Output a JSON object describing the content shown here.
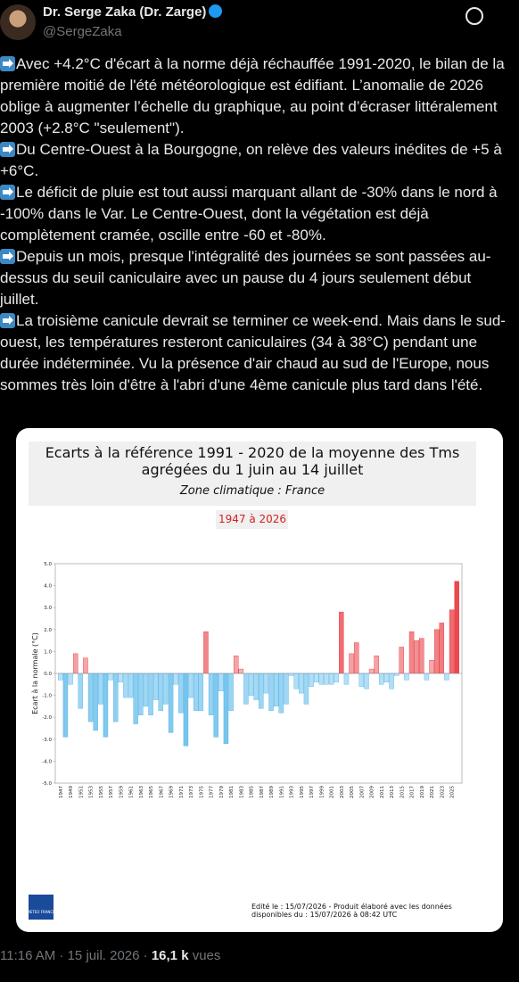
{
  "tweet": {
    "author": {
      "name": "Dr. Serge Zaka (Dr. Zarge)",
      "handle": "@SergeZaka"
    },
    "paragraphs": [
      "Avec +4.2°C d'écart à la norme déjà réchauffée 1991-2020, le bilan de la première moitié de l'été météorologique est édifiant. L’anomalie de 2026 oblige à augmenter l’échelle du graphique, au point d’écraser littéralement 2003 (+2.8°C \"seulement\").",
      "Du Centre-Ouest à la Bourgogne, on relève des valeurs inédites de +5 à +6°C.",
      "Le déficit de pluie est tout aussi marquant allant de -30% dans le nord à -100% dans le Var. Le Centre-Ouest, dont la végétation est déjà complètement cramée, oscille entre -60 et -80%.",
      "Depuis un mois, presque l'intégralité des journées se sont passées au-dessus du seuil caniculaire avec un pause du 4 jours seulement début juillet.",
      "La troisième canicule devrait se terminer ce week-end. Mais dans le sud-ouest, les températures resteront caniculaires (34 à 38°C) pendant une durée indéterminée. Vu la présence d'air chaud au sud de l'Europe, nous sommes très loin d'être à l'abri d'une 4ème canicule plus tard dans l'été."
    ],
    "meta": {
      "time": "11:16 AM · 15 juil. 2026 ·",
      "views": "16,1 k",
      "views_label": "vues"
    },
    "image": {
      "logo": "METEO FRANCE",
      "footer": [
        "Edité le : 15/07/2026 - Produit élaboré avec les données",
        "disponibles du : 15/07/2026 à 08:42 UTC"
      ]
    }
  },
  "chart_data": {
    "type": "bar",
    "title": [
      "Ecarts à la référence 1991 - 2020 de la moyenne des Tms",
      "agrégées du 1 juin au 14 juillet"
    ],
    "subtitle": "Zone climatique : France",
    "period": "1947 à 2026",
    "y_label": "Ecart à la normale (°C)",
    "categories": [
      "1947",
      null,
      "1949",
      null,
      "1951",
      null,
      "1953",
      null,
      "1955",
      null,
      "1957",
      null,
      "1959",
      null,
      "1961",
      null,
      "1963",
      null,
      "1965",
      null,
      "1967",
      null,
      "1969",
      null,
      "1971",
      null,
      "1973",
      null,
      "1975",
      null,
      "1977",
      null,
      "1979",
      null,
      "1981",
      null,
      "1983",
      null,
      "1985",
      null,
      "1987",
      null,
      "1989",
      null,
      "1991",
      null,
      "1993",
      null,
      "1995",
      null,
      "1997",
      null,
      "1999",
      null,
      "2001",
      null,
      "2003",
      null,
      "2005",
      null,
      "2007",
      null,
      "2009",
      null,
      "2011",
      null,
      "2013",
      null,
      "2015",
      null,
      "2017",
      null,
      "2019",
      null,
      "2021",
      null,
      "2023",
      null,
      "2025",
      null
    ],
    "values": [
      -0.3,
      -2.9,
      -0.5,
      0.9,
      -1.6,
      0.7,
      -2.2,
      -2.6,
      -1.4,
      -2.9,
      -0.3,
      -2.2,
      -0.4,
      -1.1,
      -1.1,
      -2.3,
      -1.9,
      -1.5,
      -1.9,
      -1.2,
      -1.7,
      -1.4,
      -2.7,
      -0.5,
      -1.8,
      -3.3,
      -1.1,
      -1.7,
      -1.7,
      1.9,
      -1.9,
      -2.9,
      -0.8,
      -3.2,
      -1.7,
      0.8,
      0.2,
      -1.4,
      -1.0,
      -1.2,
      -1.6,
      -0.9,
      -1.7,
      -1.5,
      -1.8,
      -1.4,
      -0.1,
      -0.7,
      -0.9,
      -1.4,
      -0.6,
      -0.4,
      -0.5,
      -0.5,
      -0.5,
      -0.4,
      2.8,
      -0.5,
      0.9,
      1.4,
      -0.6,
      -0.7,
      0.2,
      0.8,
      -0.5,
      -0.4,
      -0.7,
      -0.1,
      1.2,
      -0.3,
      1.9,
      1.5,
      1.6,
      -0.3,
      0.6,
      2.0,
      2.3,
      -0.3,
      2.9,
      4.2
    ],
    "positive_color": "#e8343a",
    "negative_color": "#4fb3e8",
    "ylim": [
      -5,
      5
    ],
    "yticks": [
      {
        "value": -5,
        "label": "-5.0"
      },
      {
        "value": -4,
        "label": "-4.0"
      },
      {
        "value": -3,
        "label": "-3.0"
      },
      {
        "value": -2,
        "label": "-2.0"
      },
      {
        "value": -1,
        "label": "-1.0"
      },
      {
        "value": 0,
        "label": "0.0"
      },
      {
        "value": 1,
        "label": "1.0"
      },
      {
        "value": 2,
        "label": "2.0"
      },
      {
        "value": 3,
        "label": "3.0"
      },
      {
        "value": 4,
        "label": "4.0"
      },
      {
        "value": 5,
        "label": "5.0"
      }
    ],
    "grid": false
  }
}
